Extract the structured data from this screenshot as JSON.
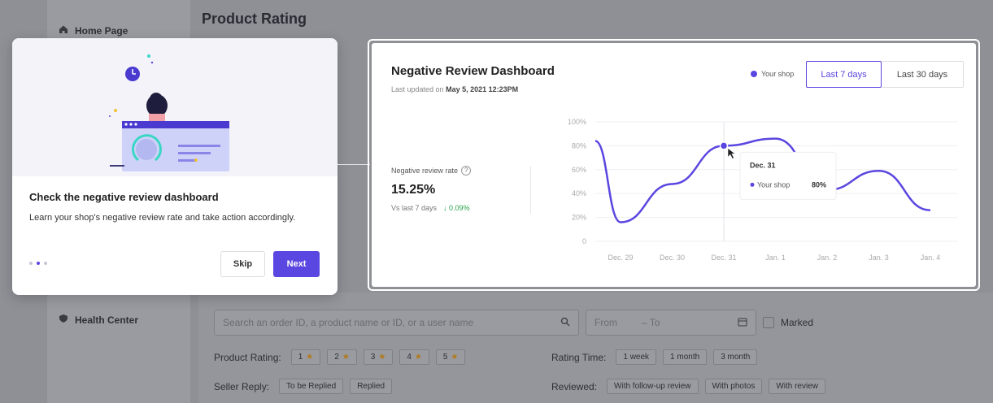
{
  "background": {
    "page_title": "Product Rating",
    "nav": [
      {
        "label": "Home Page",
        "icon": "home-icon"
      },
      {
        "label": "Health Center",
        "icon": "shield-icon"
      }
    ],
    "search_placeholder": "Search an order ID, a product name or ID, or a user name",
    "date_from": "From",
    "date_to": "– To",
    "marked_label": "Marked",
    "rating_label": "Product Rating:",
    "ratings": [
      "1",
      "2",
      "3",
      "4",
      "5"
    ],
    "rating_time_label": "Rating Time:",
    "rating_times": [
      "1 week",
      "1 month",
      "3 month"
    ],
    "seller_reply_label": "Seller Reply:",
    "seller_replies": [
      "To be Replied",
      "Replied"
    ],
    "reviewed_label": "Reviewed:",
    "reviewed_options": [
      "With follow-up review",
      "With photos",
      "With review"
    ]
  },
  "onboarding": {
    "title": "Check the negative review dashboard",
    "description": "Learn your shop's negative review rate and take action accordingly.",
    "skip_label": "Skip",
    "next_label": "Next",
    "step": 2,
    "total_steps": 3
  },
  "dashboard": {
    "title": "Negative Review Dashboard",
    "updated_prefix": "Last updated on",
    "updated_value": "May 5, 2021 12:23PM",
    "legend_label": "Your shop",
    "tab_7": "Last 7 days",
    "tab_30": "Last 30 days",
    "metric_label": "Negative review rate",
    "metric_value": "15.25%",
    "compare_label": "Vs last 7 days",
    "compare_delta": "0.09%",
    "tooltip": {
      "date": "Dec. 31",
      "series": "Your shop",
      "value": "80%"
    }
  },
  "colors": {
    "accent": "#5a46e0",
    "positive": "#2aa34a"
  },
  "chart_data": {
    "type": "line",
    "x": [
      "Dec. 29",
      "Dec. 30",
      "Dec. 31",
      "Jan. 1",
      "Jan. 2",
      "Jan. 3",
      "Jan. 4"
    ],
    "series": [
      {
        "name": "Your shop",
        "values": [
          16,
          48,
          80,
          86,
          43,
          59,
          26
        ]
      }
    ],
    "y_ticks": [
      "0",
      "20%",
      "40%",
      "60%",
      "80%",
      "100%"
    ],
    "ylim": [
      0,
      100
    ],
    "grid": true
  }
}
